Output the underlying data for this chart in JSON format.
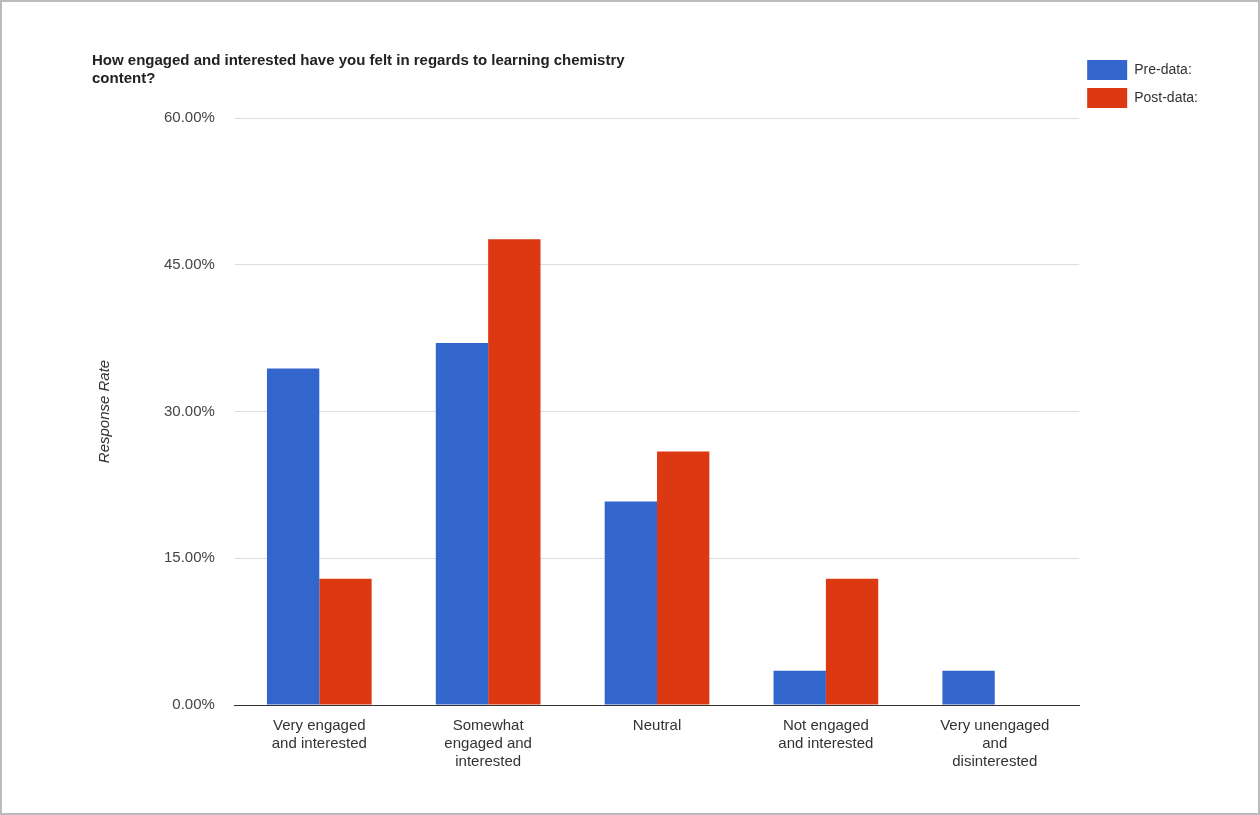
{
  "chart_data": {
    "type": "bar",
    "title": "How engaged and interested have you felt in regards to learning chemistry content?",
    "ylabel": "Response Rate",
    "categories": [
      "Very engaged and interested",
      "Somewhat engaged and interested",
      "Neutral",
      "Not engaged and interested",
      "Very unengaged and disinterested"
    ],
    "series": [
      {
        "name": "Pre-data:",
        "color": "#3366cc",
        "values": [
          34.4,
          37,
          20.8,
          3.5,
          3.5
        ]
      },
      {
        "name": "Post-data:",
        "color": "#dc3912",
        "values": [
          12.9,
          47.6,
          25.9,
          12.9,
          0
        ]
      }
    ],
    "ylim": [
      0,
      60
    ],
    "yticks": [
      {
        "value": 0,
        "label": "0.00%"
      },
      {
        "value": 15,
        "label": "15.00%"
      },
      {
        "value": 30,
        "label": "30.00%"
      },
      {
        "value": 45,
        "label": "45.00%"
      },
      {
        "value": 60,
        "label": "60.00%"
      }
    ],
    "grid": "y",
    "legend": "top right"
  }
}
